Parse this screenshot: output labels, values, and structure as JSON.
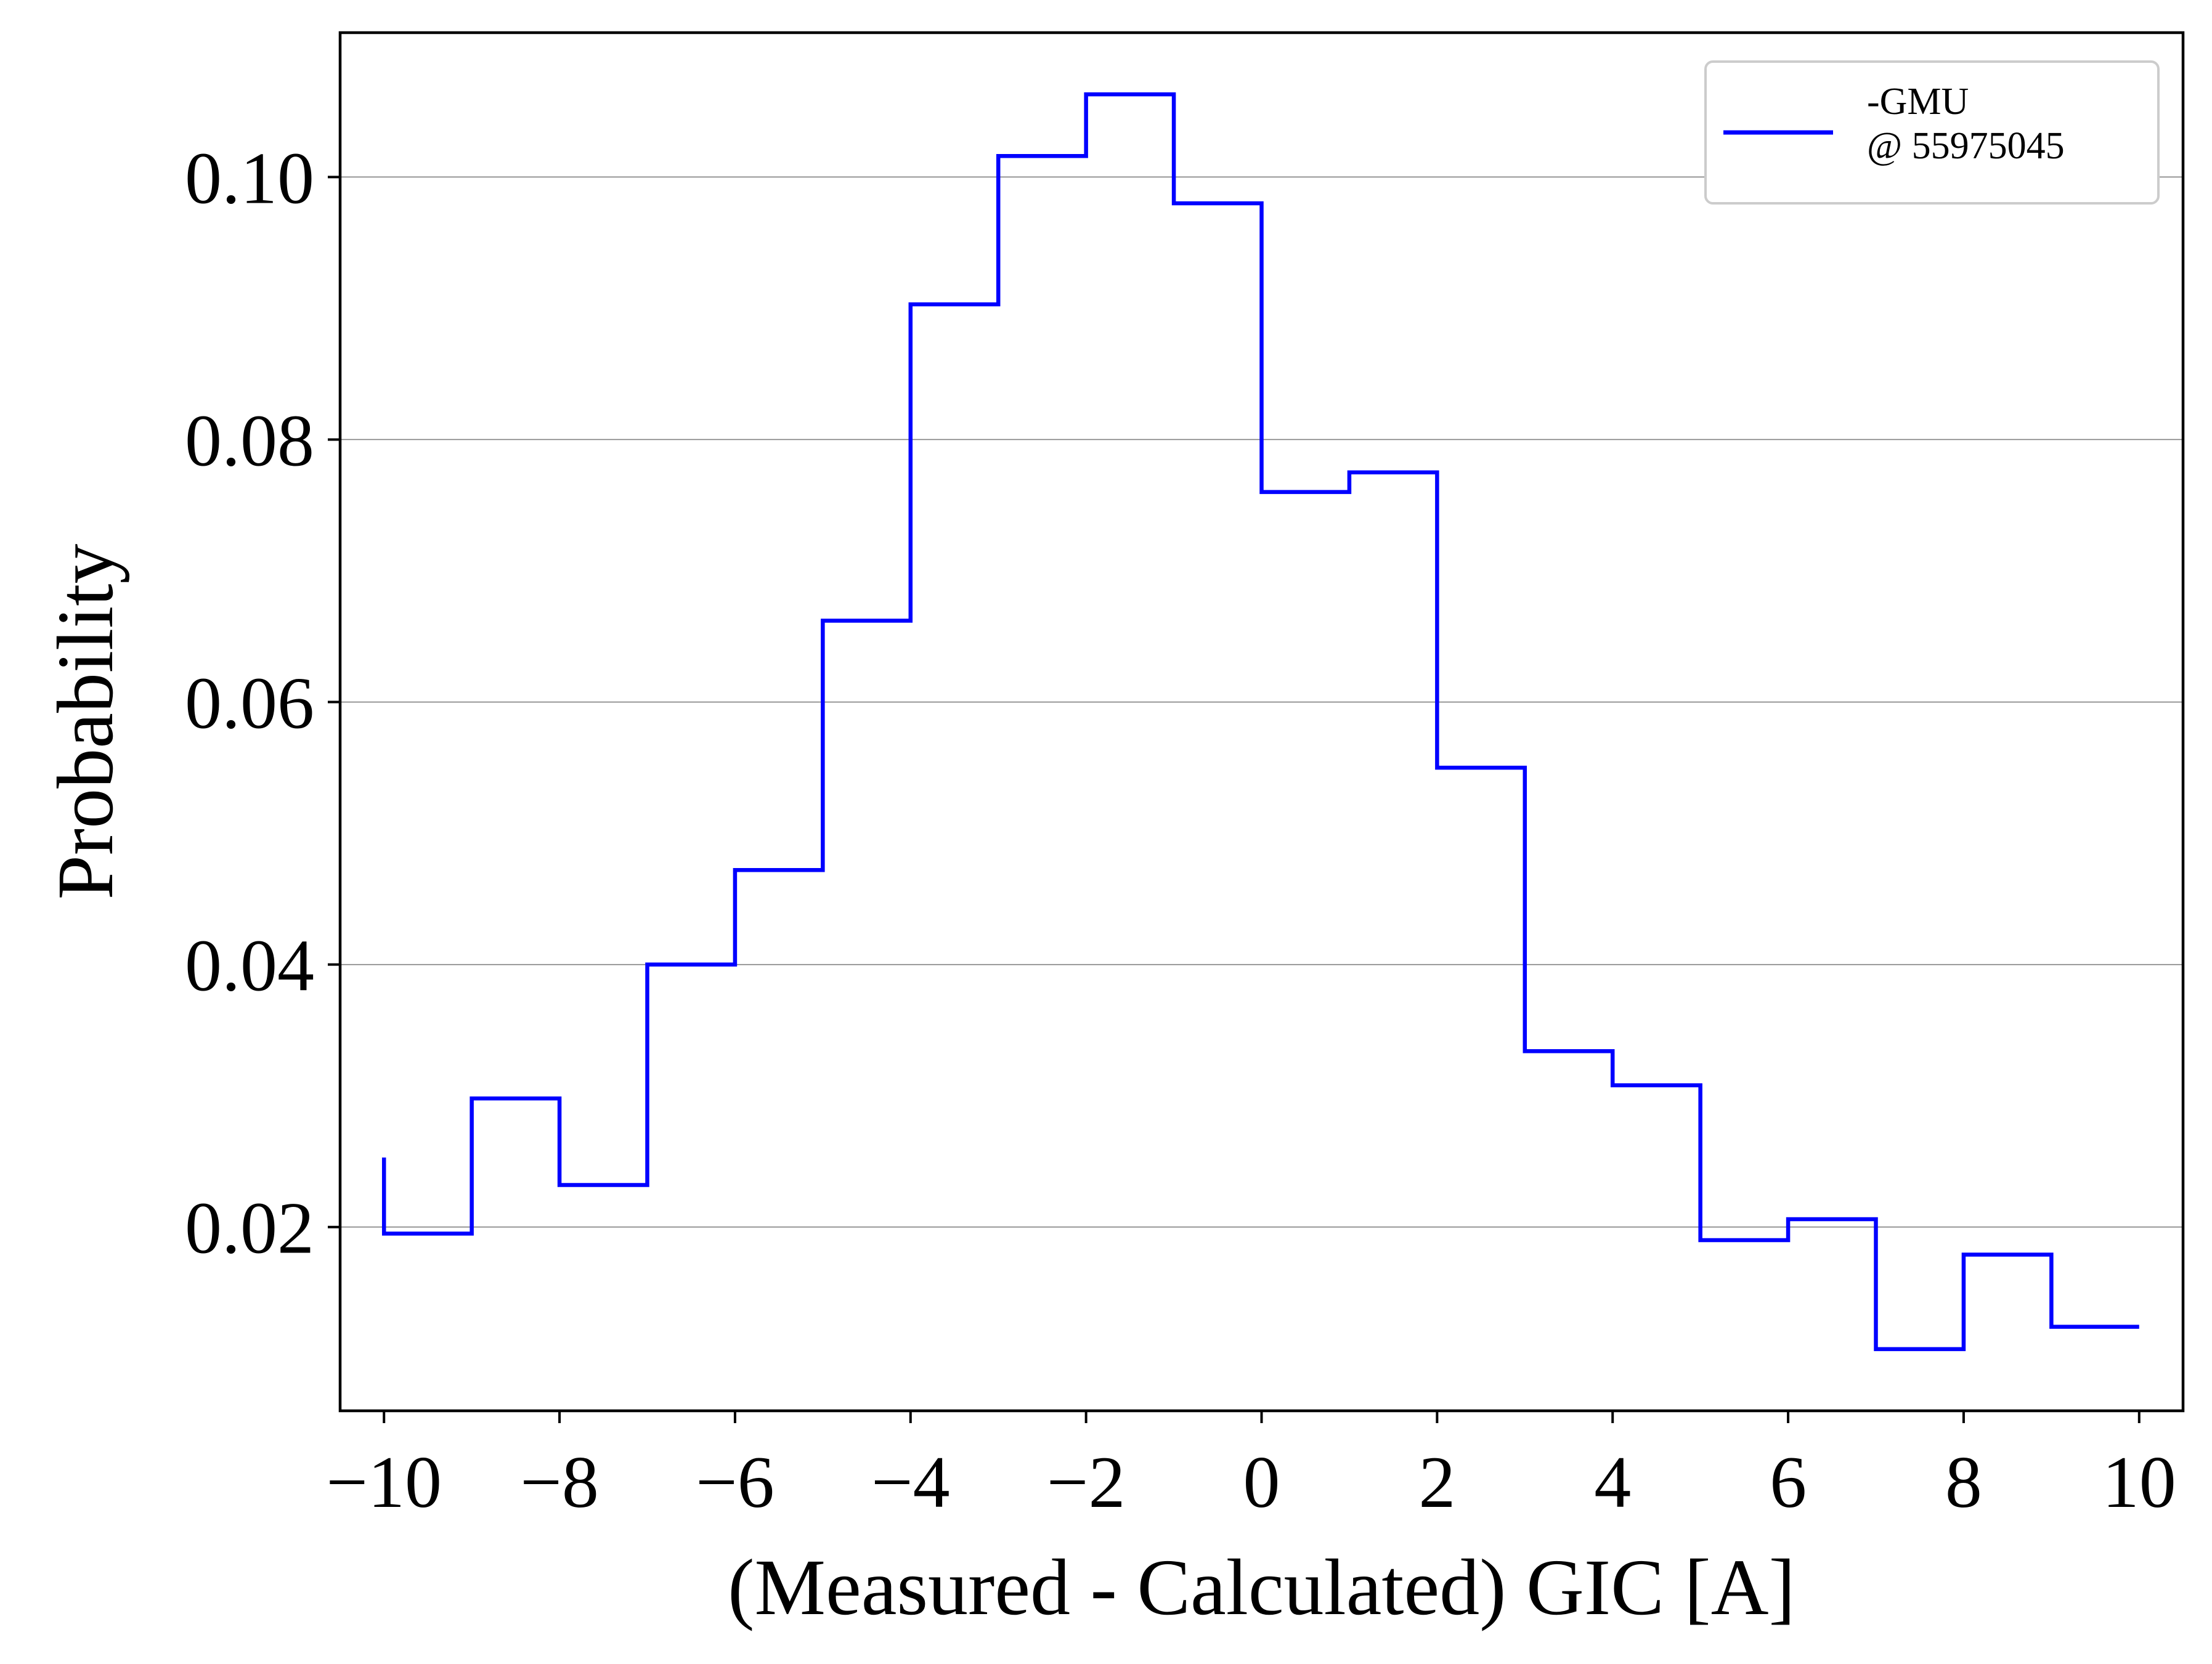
{
  "chart_data": {
    "type": "line",
    "subtype": "step-histogram",
    "title": "",
    "xlabel": "(Measured - Calculated) GIC [A]",
    "ylabel": "Probability",
    "xlim": [
      -10.5,
      10.5
    ],
    "ylim": [
      0.006,
      0.111
    ],
    "x_ticks": [
      -10,
      -8,
      -6,
      -4,
      -2,
      0,
      2,
      4,
      6,
      8,
      10
    ],
    "x_tick_labels": [
      "−10",
      "−8",
      "−6",
      "−4",
      "−2",
      "0",
      "2",
      "4",
      "6",
      "8",
      "10"
    ],
    "y_ticks": [
      0.02,
      0.04,
      0.06,
      0.08,
      0.1
    ],
    "y_tick_labels": [
      "0.02",
      "0.04",
      "0.06",
      "0.08",
      "0.10"
    ],
    "grid": "horizontal",
    "legend_position": "top-right",
    "bin_edges": [
      -10,
      -9,
      -8,
      -7,
      -6,
      -5,
      -4,
      -3,
      -2,
      -1,
      0,
      1,
      2,
      3,
      4,
      5,
      6,
      7,
      8,
      9,
      10
    ],
    "series": [
      {
        "name_lines": [
          "-GMU",
          "@ 55975045"
        ],
        "color": "#0000ff",
        "start_value": 0.0253,
        "values": [
          0.0195,
          0.0298,
          0.0232,
          0.04,
          0.0472,
          0.0662,
          0.0903,
          0.1016,
          0.1063,
          0.098,
          0.076,
          0.0775,
          0.055,
          0.0334,
          0.0308,
          0.019,
          0.0206,
          0.0107,
          0.0179,
          0.0124
        ]
      }
    ]
  }
}
